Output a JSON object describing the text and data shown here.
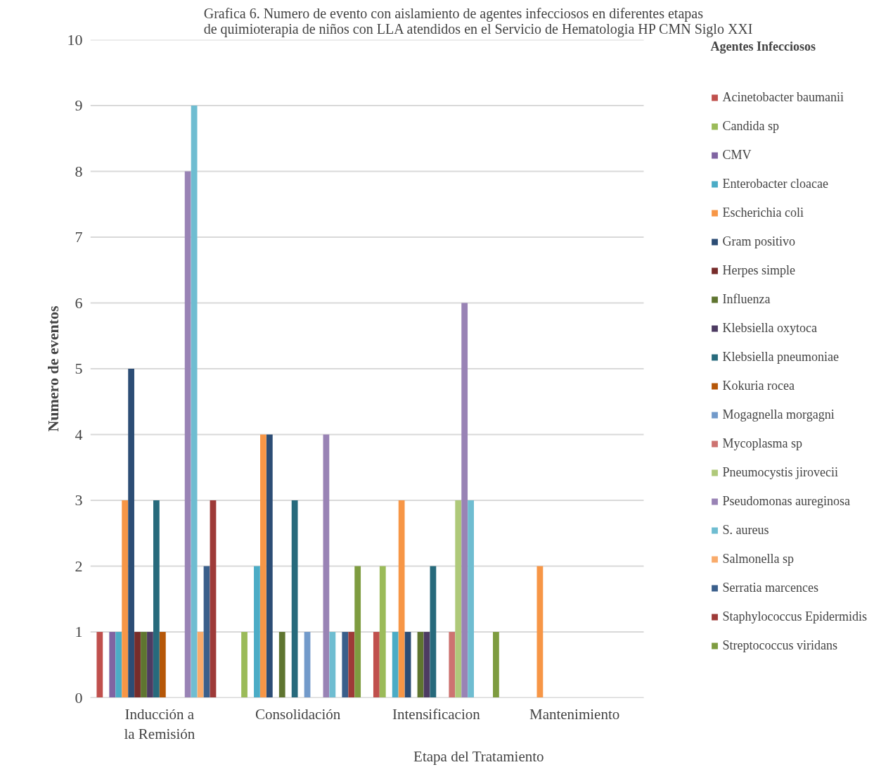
{
  "chart_data": {
    "type": "bar",
    "title": "Grafica 6. Numero de evento con aislamiento de agentes infecciosos en diferentes etapas de quimioterapia de niños con LLA atendidos en el Servicio de Hematologia HP CMN Siglo XXI",
    "xlabel": "Etapa del Tratamiento",
    "ylabel": "Numero de eventos",
    "legend_title": "Agentes Infecciosos",
    "categories": [
      "Inducción a la Remisión",
      "Consolidación",
      "Intensificacion",
      "Mantenimiento"
    ],
    "ylim": [
      0,
      10
    ],
    "yticks": [
      0,
      1,
      2,
      3,
      4,
      5,
      6,
      7,
      8,
      9,
      10
    ],
    "grid": "y",
    "legend": "right",
    "series": [
      {
        "name": "Acinetobacter baumanii",
        "color": "#c0504d",
        "values": [
          1,
          0,
          1,
          0
        ]
      },
      {
        "name": "Candida sp",
        "color": "#9bbb59",
        "values": [
          0,
          1,
          2,
          0
        ]
      },
      {
        "name": "CMV",
        "color": "#8064a2",
        "values": [
          1,
          0,
          0,
          0
        ]
      },
      {
        "name": "Enterobacter cloacae",
        "color": "#4bacc6",
        "values": [
          1,
          2,
          1,
          0
        ]
      },
      {
        "name": "Escherichia coli",
        "color": "#f79646",
        "values": [
          3,
          4,
          3,
          2
        ]
      },
      {
        "name": "Gram positivo",
        "color": "#2c4d75",
        "values": [
          5,
          4,
          1,
          0
        ]
      },
      {
        "name": "Herpes simple",
        "color": "#772c2a",
        "values": [
          1,
          0,
          0,
          0
        ]
      },
      {
        "name": "Influenza",
        "color": "#5f7530",
        "values": [
          1,
          1,
          1,
          0
        ]
      },
      {
        "name": "Klebsiella oxytoca",
        "color": "#4d3b62",
        "values": [
          1,
          0,
          1,
          0
        ]
      },
      {
        "name": "Klebsiella pneumoniae",
        "color": "#276a7c",
        "values": [
          3,
          3,
          2,
          0
        ]
      },
      {
        "name": "Kokuria rocea",
        "color": "#b65708",
        "values": [
          1,
          0,
          0,
          0
        ]
      },
      {
        "name": "Mogagnella morgagni",
        "color": "#729aca",
        "values": [
          0,
          1,
          0,
          0
        ]
      },
      {
        "name": "Mycoplasma sp",
        "color": "#cd7371",
        "values": [
          0,
          0,
          1,
          0
        ]
      },
      {
        "name": "Pneumocystis jirovecii",
        "color": "#afc97a",
        "values": [
          0,
          0,
          3,
          0
        ]
      },
      {
        "name": "Pseudomonas aureginosa",
        "color": "#9983b5",
        "values": [
          8,
          4,
          6,
          0
        ]
      },
      {
        "name": "S. aureus",
        "color": "#6fbdd1",
        "values": [
          9,
          1,
          3,
          0
        ]
      },
      {
        "name": "Salmonella sp",
        "color": "#f9ab6b",
        "values": [
          1,
          0,
          0,
          0
        ]
      },
      {
        "name": "Serratia marcences",
        "color": "#3a5f8b",
        "values": [
          2,
          1,
          0,
          0
        ]
      },
      {
        "name": "Staphylococcus Epidermidis",
        "color": "#9e3a38",
        "values": [
          3,
          1,
          0,
          0
        ]
      },
      {
        "name": "Streptococcus viridans",
        "color": "#7e9c40",
        "values": [
          0,
          2,
          1,
          0
        ]
      }
    ]
  }
}
